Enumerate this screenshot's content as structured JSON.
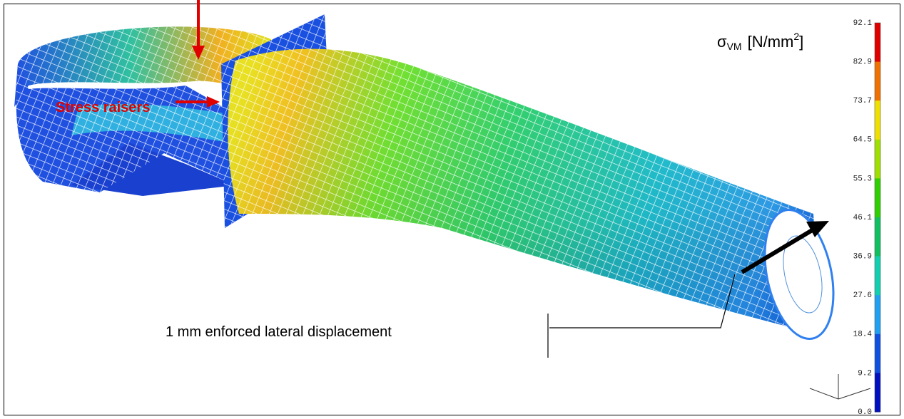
{
  "legend": {
    "symbol": "σ",
    "subscript": "VM",
    "unit": "[N/mm",
    "exponent": "2",
    "close": "]",
    "labels": [
      "92.1",
      "82.9",
      "73.7",
      "64.5",
      "55.3",
      "46.1",
      "36.9",
      "27.6",
      "18.4",
      "9.2",
      "0.0"
    ],
    "colors": [
      "#e00000",
      "#f07000",
      "#f0e000",
      "#a0e000",
      "#30d000",
      "#10c060",
      "#10d0b0",
      "#20a0f0",
      "#1050e0",
      "#0010c0"
    ]
  },
  "annotations": {
    "stress": "Stress raisers",
    "displacement": "1 mm enforced lateral displacement"
  }
}
